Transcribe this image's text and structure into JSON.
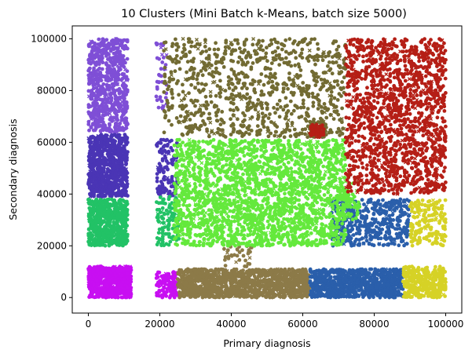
{
  "chart_data": {
    "type": "scatter",
    "title": "10 Clusters (Mini Batch k-Means, batch size 5000)",
    "xlabel": "Primary diagnosis",
    "ylabel": "Secondary diagnosis",
    "xlim": [
      -4500,
      104500
    ],
    "ylim": [
      -6000,
      105000
    ],
    "xticks": [
      0,
      20000,
      40000,
      60000,
      80000,
      100000
    ],
    "xtick_labels": [
      "0",
      "20000",
      "40000",
      "60000",
      "80000",
      "100000"
    ],
    "yticks": [
      0,
      20000,
      40000,
      60000,
      80000,
      100000
    ],
    "ytick_labels": [
      "0",
      "20000",
      "40000",
      "60000",
      "80000",
      "100000"
    ],
    "grid": false,
    "legend": false,
    "markers": [
      "circle",
      "x"
    ],
    "series": [
      {
        "color": "#7f4fd6",
        "regions": [
          {
            "x": [
              0,
              11000
            ],
            "y": [
              64000,
              100000
            ],
            "n": 700
          },
          {
            "x": [
              19000,
              22000
            ],
            "y": [
              72000,
              100000
            ],
            "n": 40
          }
        ]
      },
      {
        "color": "#4a35b5",
        "regions": [
          {
            "x": [
              0,
              11000
            ],
            "y": [
              39000,
              63000
            ],
            "n": 800
          },
          {
            "x": [
              19000,
              25000
            ],
            "y": [
              39000,
              61000
            ],
            "n": 120
          }
        ]
      },
      {
        "color": "#22c266",
        "regions": [
          {
            "x": [
              0,
              11000
            ],
            "y": [
              20000,
              38000
            ],
            "n": 600
          },
          {
            "x": [
              19000,
              26000
            ],
            "y": [
              20000,
              39000
            ],
            "n": 110
          }
        ]
      },
      {
        "color": "#c80ff2",
        "regions": [
          {
            "x": [
              0,
              12000
            ],
            "y": [
              0,
              12000
            ],
            "n": 700
          },
          {
            "x": [
              19000,
              25000
            ],
            "y": [
              0,
              10000
            ],
            "n": 120
          }
        ]
      },
      {
        "color": "#8c7a48",
        "regions": [
          {
            "x": [
              25000,
              62000
            ],
            "y": [
              0,
              11000
            ],
            "n": 1300
          },
          {
            "x": [
              38000,
              46000
            ],
            "y": [
              11000,
              20000
            ],
            "n": 35
          }
        ]
      },
      {
        "color": "#2a5fab",
        "regions": [
          {
            "x": [
              62000,
              88000
            ],
            "y": [
              0,
              11000
            ],
            "n": 900
          },
          {
            "x": [
              68000,
              90000
            ],
            "y": [
              20000,
              38000
            ],
            "n": 450
          }
        ]
      },
      {
        "color": "#d6d226",
        "regions": [
          {
            "x": [
              88000,
              100000
            ],
            "y": [
              0,
              12000
            ],
            "n": 350
          },
          {
            "x": [
              90000,
              100000
            ],
            "y": [
              20000,
              38000
            ],
            "n": 180
          }
        ]
      },
      {
        "color": "#64e93c",
        "regions": [
          {
            "x": [
              24000,
              72000
            ],
            "y": [
              20000,
              61000
            ],
            "n": 2200
          },
          {
            "x": [
              70000,
              76000
            ],
            "y": [
              30000,
              45000
            ],
            "n": 60
          }
        ]
      },
      {
        "color": "#726b33",
        "regions": [
          {
            "x": [
              21000,
              72000
            ],
            "y": [
              62000,
              100000
            ],
            "n": 900
          },
          {
            "x": [
              62000,
              66000
            ],
            "y": [
              62000,
              68000
            ],
            "n": 80
          }
        ]
      },
      {
        "color": "#b51f16",
        "regions": [
          {
            "x": [
              72000,
              100000
            ],
            "y": [
              40000,
              100000
            ],
            "n": 1500
          },
          {
            "x": [
              62000,
              66000
            ],
            "y": [
              62000,
              67000
            ],
            "n": 60
          }
        ]
      }
    ]
  }
}
